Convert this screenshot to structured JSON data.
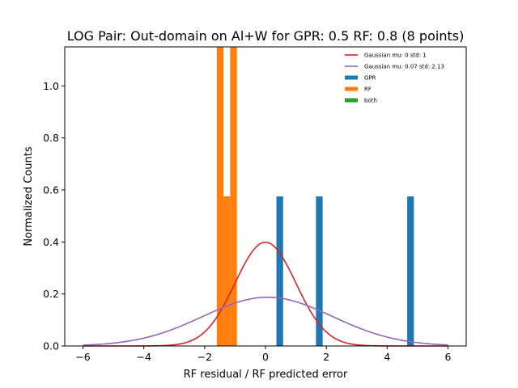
{
  "chart_data": {
    "type": "bar",
    "title": "LOG Pair: Out-domain on Al+W for GPR: 0.5 RF: 0.8 (8 points)",
    "xlabel": "RF residual / RF predicted error",
    "ylabel": "Normalized Counts",
    "xlim": [
      -6.6,
      6.6
    ],
    "ylim": [
      0,
      1.15
    ],
    "x_ticks": [
      -6,
      -4,
      -2,
      0,
      2,
      4,
      6
    ],
    "x_tick_labels": [
      "−6",
      "−4",
      "−2",
      "0",
      "2",
      "4",
      "6"
    ],
    "y_ticks": [
      0.0,
      0.2,
      0.4,
      0.6,
      0.8,
      1.0
    ],
    "y_tick_labels": [
      "0.0",
      "0.2",
      "0.4",
      "0.6",
      "0.8",
      "1.0"
    ],
    "bar_width": 0.22,
    "series": [
      {
        "name": "GPR",
        "kind": "bars",
        "color": "#1f77b4",
        "bars": [
          {
            "x": 0.47,
            "y": 0.575
          },
          {
            "x": 1.77,
            "y": 0.575
          },
          {
            "x": 4.77,
            "y": 0.575
          }
        ]
      },
      {
        "name": "RF",
        "kind": "bars",
        "color": "#ff7f0e",
        "bars": [
          {
            "x": -1.49,
            "y": 1.15
          },
          {
            "x": -1.27,
            "y": 0.575
          },
          {
            "x": -1.05,
            "y": 1.15
          }
        ]
      },
      {
        "name": "both",
        "kind": "bars",
        "color": "#2ca02c",
        "bars": []
      },
      {
        "name": "Gaussian mu: 0 std: 1",
        "kind": "curve",
        "color": "#d62728",
        "mu": 0,
        "std": 1,
        "x_range": [
          -6,
          6
        ]
      },
      {
        "name": "Gaussian mu: 0.07 std: 2.13",
        "kind": "curve",
        "color": "#9467bd",
        "mu": 0.07,
        "std": 2.13,
        "x_range": [
          -6,
          6
        ]
      }
    ],
    "legend": {
      "position": "upper-right",
      "order": [
        "Gaussian mu: 0 std: 1",
        "Gaussian mu: 0.07 std: 2.13",
        "GPR",
        "RF",
        "both"
      ]
    }
  }
}
